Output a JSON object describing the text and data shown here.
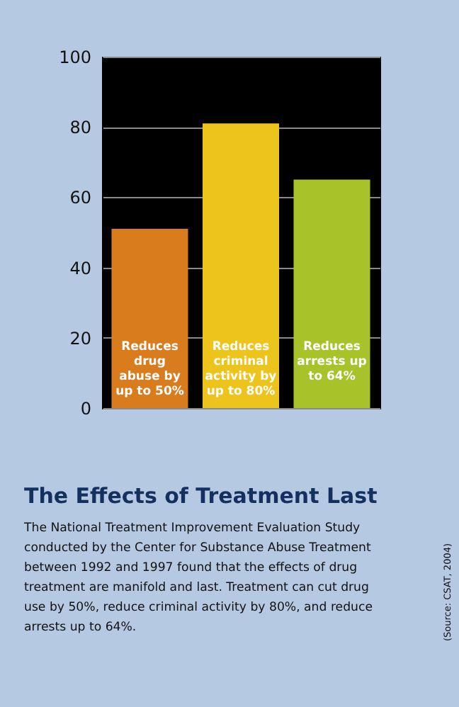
{
  "chart_data": {
    "type": "bar",
    "title": "The Effects of Treatment Last",
    "categories": [
      null,
      null,
      null
    ],
    "values": [
      51,
      81,
      65
    ],
    "colors": [
      "#d97c1e",
      "#edc41c",
      "#a8c22a"
    ],
    "value_labels": [
      "Reduces\ndrug\nabuse by\nup to 50%",
      "Reduces\ncriminal\nactivity by\nup to 80%",
      "Reduces\narrests up\nto 64%"
    ],
    "ylim": [
      0,
      100
    ],
    "yticks": [
      0,
      20,
      40,
      60,
      80,
      100
    ],
    "grid": "y",
    "tick_labels": "y",
    "annotations": [
      "The National Treatment Improvement Evaluation Study\nconducted by the Center for Substance Abuse Treatment\nbetween 1992 and 1997 found that the effects of drug\ntreatment are manifold and last. Treatment can cut drug\nuse by 50%, reduce criminal activity by 80%, and reduce\narrests up to 64%.",
      "(Source: CSAT, 2004)"
    ]
  }
}
